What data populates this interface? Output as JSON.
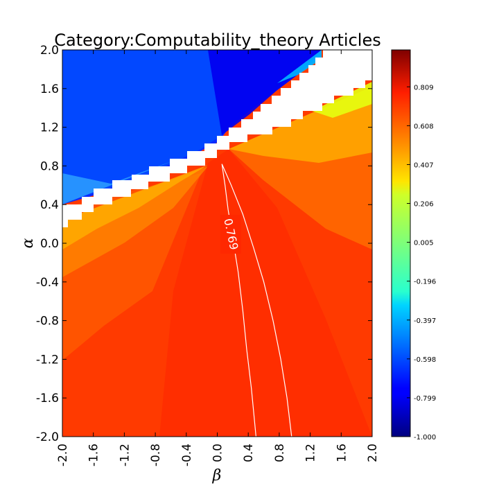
{
  "chart_data": {
    "type": "heatmap",
    "title": "Category:Computability_theory Articles",
    "xlabel": "β",
    "ylabel": "α",
    "xlim": [
      -2.0,
      2.0
    ],
    "ylim": [
      -2.0,
      2.0
    ],
    "x_ticks": [
      "-2.0",
      "-1.6",
      "-1.2",
      "-0.8",
      "-0.4",
      "0.0",
      "0.4",
      "0.8",
      "1.2",
      "1.6",
      "2.0"
    ],
    "y_ticks": [
      "-2.0",
      "-1.6",
      "-1.2",
      "-0.8",
      "-0.4",
      "0.0",
      "0.4",
      "0.8",
      "1.2",
      "1.6",
      "2.0"
    ],
    "colorbar": {
      "colormap": "jet",
      "range": [
        -1.0,
        1.0
      ],
      "ticks": [
        "-1.000",
        "-0.799",
        "-0.598",
        "-0.397",
        "-0.196",
        "0.005",
        "0.206",
        "0.407",
        "0.608",
        "0.809"
      ]
    },
    "regions": [
      {
        "name": "upper-left",
        "description_value": -0.8
      },
      {
        "name": "lower-right",
        "description_value": 0.78
      }
    ],
    "contour": {
      "level": 0.769,
      "label": "0.769",
      "left_branch": [
        [
          0.06,
          0.82
        ],
        [
          0.1,
          0.6
        ],
        [
          0.14,
          0.35
        ],
        [
          0.2,
          0.05
        ],
        [
          0.27,
          -0.3
        ],
        [
          0.33,
          -0.7
        ],
        [
          0.38,
          -1.1
        ],
        [
          0.44,
          -1.5
        ],
        [
          0.5,
          -2.0
        ]
      ],
      "right_branch": [
        [
          0.06,
          0.82
        ],
        [
          0.18,
          0.6
        ],
        [
          0.33,
          0.3
        ],
        [
          0.47,
          -0.05
        ],
        [
          0.6,
          -0.4
        ],
        [
          0.72,
          -0.8
        ],
        [
          0.82,
          -1.2
        ],
        [
          0.9,
          -1.6
        ],
        [
          0.96,
          -2.0
        ]
      ]
    }
  }
}
